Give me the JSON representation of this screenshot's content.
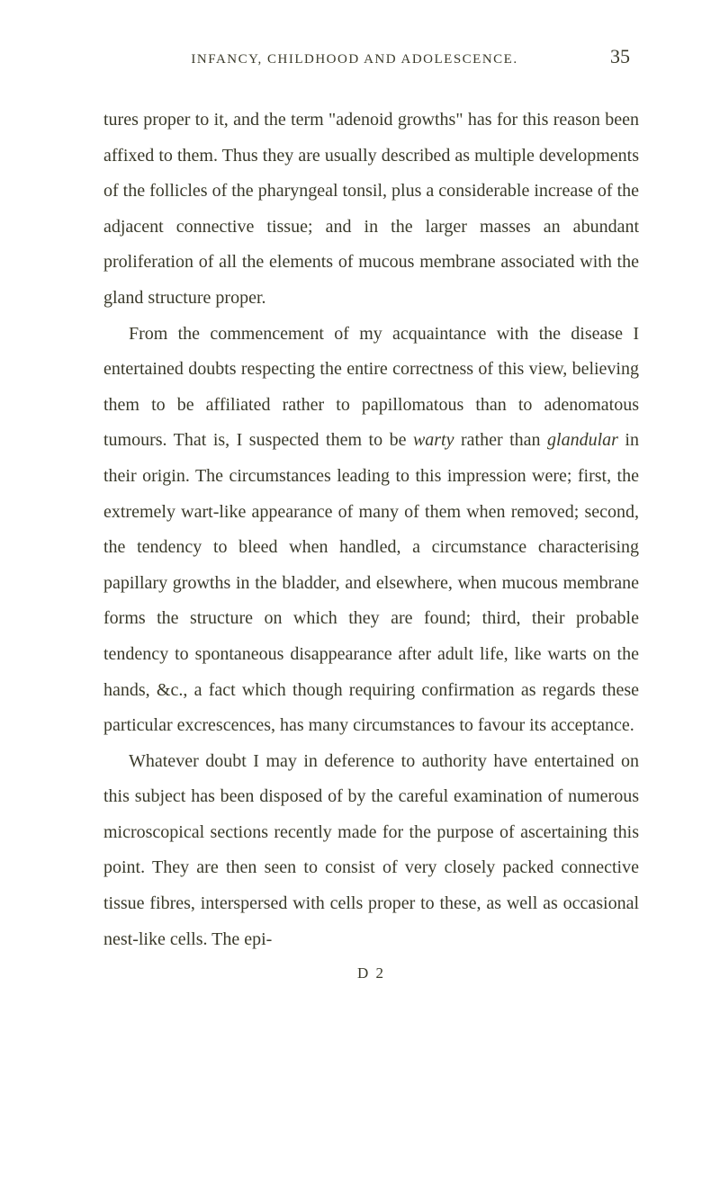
{
  "header": {
    "running_title": "INFANCY, CHILDHOOD AND ADOLESCENCE.",
    "page_number": "35"
  },
  "paragraphs": {
    "p1_pre": "tures proper to it, and the term \"adenoid growths\" has for this reason been affixed to them. Thus they are usually described as multiple developments of the follicles of the pharyngeal tonsil, plus a considerable increase of the adjacent connective tissue; and in the larger masses an abundant proliferation of all the elements of mucous membrane associated with the gland structure proper.",
    "p2_part1": "From the commencement of my acquaintance with the disease I entertained doubts respecting the entire correctness of this view, believing them to be affiliated rather to papillomatous than to adenomatous tumours. That is, I suspected them to be ",
    "p2_warty": "warty",
    "p2_part2": " rather than ",
    "p2_glandular": "glandular",
    "p2_part3": " in their origin. The circumstances leading to this impression were; first, the extremely wart-like appearance of many of them when removed; second, the tendency to bleed when handled, a circumstance characterising papillary growths in the bladder, and elsewhere, when mucous membrane forms the structure on which they are found; third, their probable tendency to spontaneous disappearance after adult life, like warts on the hands, &c., a fact which though requiring confirmation as regards these particular excrescences, has many circumstances to favour its acceptance.",
    "p3": "Whatever doubt I may in deference to authority have entertained on this subject has been disposed of by the careful examination of numerous microscopical sections recently made for the purpose of ascertaining this point. They are then seen to consist of very closely packed connective tissue fibres, interspersed with cells proper to these, as well as occasional nest-like cells. The epi-"
  },
  "footer": {
    "signature": "D 2"
  },
  "styling": {
    "background_color": "#ffffff",
    "text_color": "#3a3a2a",
    "body_font_size": 20,
    "line_height": 1.98,
    "header_font_size": 15,
    "page_number_font_size": 22
  }
}
